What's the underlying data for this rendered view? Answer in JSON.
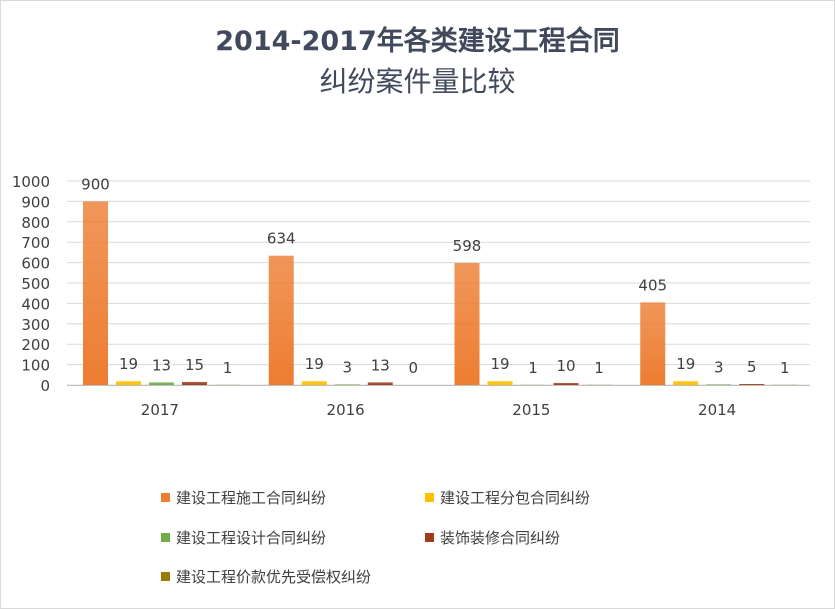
{
  "chart_data": {
    "type": "bar",
    "title_line1": "2014-2017年各类建设工程合同",
    "title_line2": "纠纷案件量比较",
    "categories": [
      "2017",
      "2016",
      "2015",
      "2014"
    ],
    "series": [
      {
        "name": "建设工程施工合同纠纷",
        "color": "#ed7d31",
        "values": [
          900,
          634,
          598,
          405
        ]
      },
      {
        "name": "建设工程分包合同纠纷",
        "color": "#ffc000",
        "values": [
          19,
          19,
          19,
          19
        ]
      },
      {
        "name": "建设工程设计合同纠纷",
        "color": "#70ad47",
        "values": [
          13,
          3,
          1,
          3
        ]
      },
      {
        "name": "装饰装修合同纠纷",
        "color": "#9e3b1c",
        "values": [
          15,
          13,
          10,
          5
        ]
      },
      {
        "name": "建设工程价款优先受偿权纠纷",
        "color": "#9c7a00",
        "values": [
          1,
          0,
          1,
          1
        ]
      }
    ],
    "ylim": [
      0,
      1000
    ],
    "yticks": [
      0,
      100,
      200,
      300,
      400,
      500,
      600,
      700,
      800,
      900,
      1000
    ],
    "grid": true,
    "legend_position": "bottom"
  }
}
